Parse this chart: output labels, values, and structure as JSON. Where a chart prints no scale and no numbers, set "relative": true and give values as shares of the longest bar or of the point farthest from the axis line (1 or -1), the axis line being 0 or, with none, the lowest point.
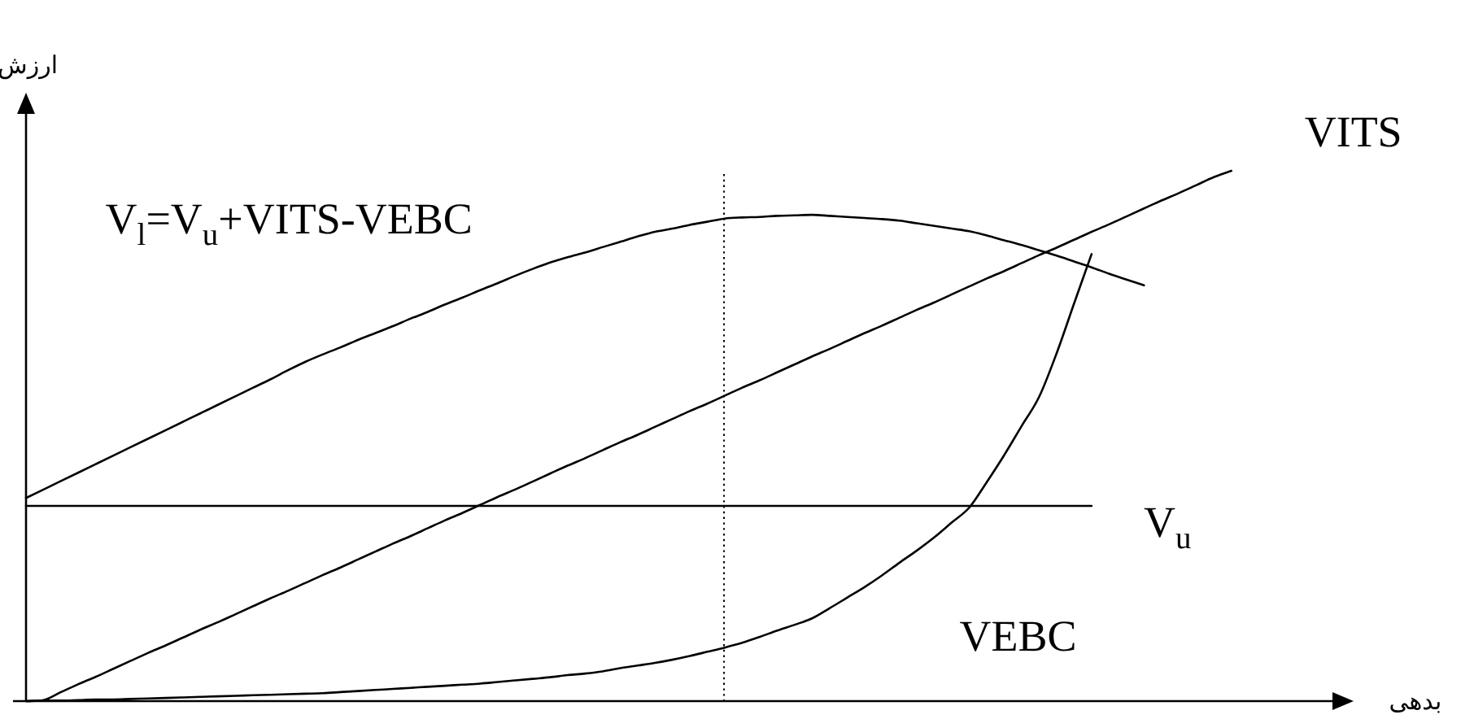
{
  "chart_data": {
    "type": "line",
    "relative": true,
    "xlabel": "بدهی",
    "ylabel": "ارزش",
    "categories": [
      null,
      null,
      null,
      null,
      null,
      null,
      null,
      null,
      null,
      null,
      null,
      null,
      null,
      null,
      null,
      null,
      null,
      null,
      null,
      null,
      null,
      null,
      null,
      null,
      null,
      null,
      null,
      null,
      null,
      null,
      null,
      null,
      null,
      null,
      null,
      null,
      null,
      null,
      null,
      null,
      null,
      null,
      null,
      null,
      null,
      null,
      null,
      null,
      null,
      null,
      null,
      null,
      null,
      null,
      null,
      null,
      null,
      null,
      null,
      null,
      null,
      null,
      null,
      null,
      null,
      null,
      null,
      null,
      null,
      null,
      null,
      null,
      null,
      null,
      null,
      null,
      null
    ],
    "series": [
      {
        "name": "V$_{l}$=V$_{u}$+VITS-VEBC",
        "color": "#000000",
        "values": [
          0.383,
          0.399,
          0.415,
          0.431,
          0.447,
          0.463,
          0.479,
          0.495,
          0.511,
          0.527,
          0.543,
          0.559,
          0.575,
          0.591,
          0.607,
          0.624,
          0.64,
          0.654,
          0.667,
          0.681,
          0.694,
          0.707,
          0.721,
          0.734,
          0.748,
          0.761,
          0.775,
          0.788,
          0.802,
          0.815,
          0.827,
          0.837,
          0.846,
          0.856,
          0.866,
          0.876,
          0.885,
          0.891,
          0.898,
          0.904,
          0.91,
          0.912,
          0.913,
          0.915,
          0.916,
          0.917,
          0.915,
          0.913,
          0.911,
          0.909,
          0.906,
          0.901,
          0.896,
          0.891,
          0.886,
          0.878,
          0.869,
          0.86,
          0.85,
          0.84,
          0.829,
          0.818,
          0.806,
          0.795,
          0.784,
          null,
          null,
          null,
          null,
          null,
          null,
          null,
          null,
          null,
          null,
          null,
          null
        ]
      },
      {
        "name": "VITS",
        "color": "#000000",
        "values": [
          0,
          0.002,
          0.017,
          0.032,
          0.046,
          0.061,
          0.076,
          0.091,
          0.105,
          0.12,
          0.135,
          0.149,
          0.164,
          0.179,
          0.194,
          0.208,
          0.223,
          0.238,
          0.252,
          0.267,
          0.282,
          0.297,
          0.311,
          0.326,
          0.341,
          0.355,
          0.37,
          0.385,
          0.399,
          0.414,
          0.429,
          0.444,
          0.458,
          0.473,
          0.488,
          0.502,
          0.517,
          0.532,
          0.547,
          0.561,
          0.576,
          0.591,
          0.605,
          0.62,
          0.635,
          0.65,
          0.664,
          0.679,
          0.694,
          0.708,
          0.723,
          0.738,
          0.752,
          0.767,
          0.782,
          0.797,
          0.811,
          0.826,
          0.841,
          0.855,
          0.87,
          0.885,
          0.899,
          0.914,
          0.929,
          0.944,
          0.958,
          0.973,
          0.988,
          1,
          null,
          null,
          null,
          null,
          null,
          null,
          null
        ]
      },
      {
        "name": "V$_{u}$",
        "color": "#000000",
        "values": [
          0.368,
          0.368,
          0.368,
          0.368,
          0.368,
          0.368,
          0.368,
          0.368,
          0.368,
          0.368,
          0.368,
          0.368,
          0.368,
          0.368,
          0.368,
          0.368,
          0.368,
          0.368,
          0.368,
          0.368,
          0.368,
          0.368,
          0.368,
          0.368,
          0.368,
          0.368,
          0.368,
          0.368,
          0.368,
          0.368,
          0.368,
          0.368,
          0.368,
          0.368,
          0.368,
          0.368,
          0.368,
          0.368,
          0.368,
          0.368,
          0.368,
          0.368,
          0.368,
          0.368,
          0.368,
          0.368,
          0.368,
          0.368,
          0.368,
          0.368,
          0.368,
          0.368,
          0.368,
          0.368,
          0.368,
          0.368,
          0.368,
          0.368,
          0.368,
          0.368,
          0.368,
          0.368,
          null,
          null,
          null,
          null,
          null,
          null,
          null,
          null,
          null,
          null,
          null,
          null,
          null,
          null,
          null
        ]
      },
      {
        "name": "VEBC",
        "color": "#000000",
        "values": [
          0,
          0.001,
          0.001,
          0.002,
          0.003,
          0.003,
          0.004,
          0.005,
          0.006,
          0.007,
          0.008,
          0.009,
          0.01,
          0.011,
          0.012,
          0.013,
          0.014,
          0.015,
          0.017,
          0.019,
          0.021,
          0.023,
          0.025,
          0.027,
          0.029,
          0.031,
          0.033,
          0.036,
          0.039,
          0.042,
          0.045,
          0.049,
          0.052,
          0.056,
          0.062,
          0.067,
          0.072,
          0.078,
          0.085,
          0.093,
          0.101,
          0.11,
          0.121,
          0.133,
          0.144,
          0.156,
          0.175,
          0.195,
          0.215,
          0.237,
          0.261,
          0.284,
          0.309,
          0.337,
          0.365,
          0.413,
          0.464,
          0.519,
          0.574,
          0.656,
          0.75,
          0.843,
          null,
          null,
          null,
          null,
          null,
          null,
          null,
          null,
          null,
          null,
          null,
          null,
          null,
          null,
          null
        ]
      }
    ]
  }
}
